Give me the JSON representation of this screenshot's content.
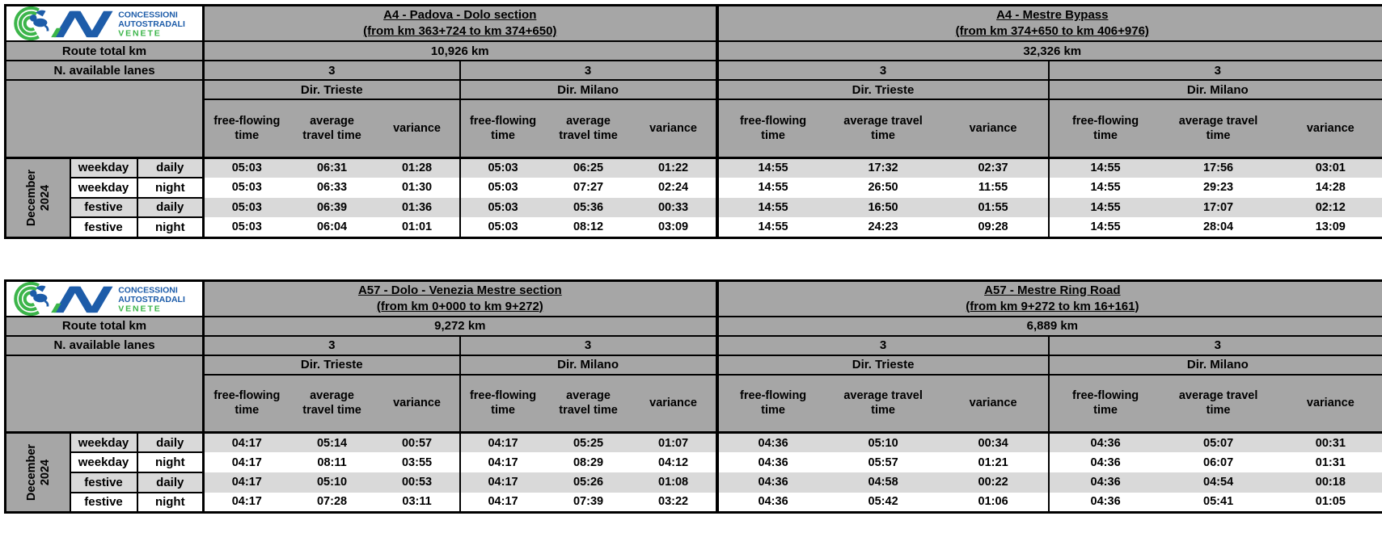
{
  "report": {
    "logo": {
      "text_line1": "CONCESSIONI",
      "text_line2": "AUTOSTRADALI",
      "text_line3": "VENETE",
      "colors": {
        "green": "#3cb54a",
        "blue": "#1d5ca9"
      }
    },
    "labels": {
      "route_total_km": "Route total km",
      "available_lanes": "N. available lanes",
      "free_flowing": "free-flowing time",
      "avg_travel": "average travel time",
      "variance": "variance"
    },
    "period": {
      "line1": "December",
      "line2": "2024"
    },
    "row_labels": [
      {
        "day": "weekday",
        "time": "daily"
      },
      {
        "day": "weekday",
        "time": "night"
      },
      {
        "day": "festive",
        "time": "daily"
      },
      {
        "day": "festive",
        "time": "night"
      }
    ],
    "colors": {
      "header_bg": "#a6a6a6",
      "row_alt_bg": "#d9d9d9",
      "row_bg": "#ffffff",
      "border": "#000000"
    },
    "tables": [
      {
        "sections": [
          {
            "title": "A4 - Padova - Dolo section",
            "subtitle": "(from km 363+724 to km 374+650)",
            "route_total": "10,926 km",
            "directions": [
              {
                "lanes": "3",
                "name": "Dir. Trieste",
                "rows": [
                  [
                    "05:03",
                    "06:31",
                    "01:28"
                  ],
                  [
                    "05:03",
                    "06:33",
                    "01:30"
                  ],
                  [
                    "05:03",
                    "06:39",
                    "01:36"
                  ],
                  [
                    "05:03",
                    "06:04",
                    "01:01"
                  ]
                ]
              },
              {
                "lanes": "3",
                "name": "Dir. Milano",
                "rows": [
                  [
                    "05:03",
                    "06:25",
                    "01:22"
                  ],
                  [
                    "05:03",
                    "07:27",
                    "02:24"
                  ],
                  [
                    "05:03",
                    "05:36",
                    "00:33"
                  ],
                  [
                    "05:03",
                    "08:12",
                    "03:09"
                  ]
                ]
              }
            ]
          },
          {
            "title": "A4 - Mestre Bypass",
            "subtitle": "(from km 374+650 to km 406+976)",
            "route_total": "32,326 km",
            "directions": [
              {
                "lanes": "3",
                "name": "Dir. Trieste",
                "rows": [
                  [
                    "14:55",
                    "17:32",
                    "02:37"
                  ],
                  [
                    "14:55",
                    "26:50",
                    "11:55"
                  ],
                  [
                    "14:55",
                    "16:50",
                    "01:55"
                  ],
                  [
                    "14:55",
                    "24:23",
                    "09:28"
                  ]
                ]
              },
              {
                "lanes": "3",
                "name": "Dir. Milano",
                "rows": [
                  [
                    "14:55",
                    "17:56",
                    "03:01"
                  ],
                  [
                    "14:55",
                    "29:23",
                    "14:28"
                  ],
                  [
                    "14:55",
                    "17:07",
                    "02:12"
                  ],
                  [
                    "14:55",
                    "28:04",
                    "13:09"
                  ]
                ]
              }
            ]
          }
        ]
      },
      {
        "sections": [
          {
            "title": "A57 - Dolo - Venezia Mestre section",
            "subtitle": "(from km 0+000 to km 9+272)",
            "route_total": "9,272 km",
            "directions": [
              {
                "lanes": "3",
                "name": "Dir. Trieste",
                "rows": [
                  [
                    "04:17",
                    "05:14",
                    "00:57"
                  ],
                  [
                    "04:17",
                    "08:11",
                    "03:55"
                  ],
                  [
                    "04:17",
                    "05:10",
                    "00:53"
                  ],
                  [
                    "04:17",
                    "07:28",
                    "03:11"
                  ]
                ]
              },
              {
                "lanes": "3",
                "name": "Dir. Milano",
                "rows": [
                  [
                    "04:17",
                    "05:25",
                    "01:07"
                  ],
                  [
                    "04:17",
                    "08:29",
                    "04:12"
                  ],
                  [
                    "04:17",
                    "05:26",
                    "01:08"
                  ],
                  [
                    "04:17",
                    "07:39",
                    "03:22"
                  ]
                ]
              }
            ]
          },
          {
            "title": "A57 - Mestre Ring Road",
            "subtitle": "(from km 9+272 to km 16+161)",
            "route_total": "6,889 km",
            "directions": [
              {
                "lanes": "3",
                "name": "Dir. Trieste",
                "rows": [
                  [
                    "04:36",
                    "05:10",
                    "00:34"
                  ],
                  [
                    "04:36",
                    "05:57",
                    "01:21"
                  ],
                  [
                    "04:36",
                    "04:58",
                    "00:22"
                  ],
                  [
                    "04:36",
                    "05:42",
                    "01:06"
                  ]
                ]
              },
              {
                "lanes": "3",
                "name": "Dir. Milano",
                "rows": [
                  [
                    "04:36",
                    "05:07",
                    "00:31"
                  ],
                  [
                    "04:36",
                    "06:07",
                    "01:31"
                  ],
                  [
                    "04:36",
                    "04:54",
                    "00:18"
                  ],
                  [
                    "04:36",
                    "05:41",
                    "01:05"
                  ]
                ]
              }
            ]
          }
        ]
      }
    ]
  }
}
